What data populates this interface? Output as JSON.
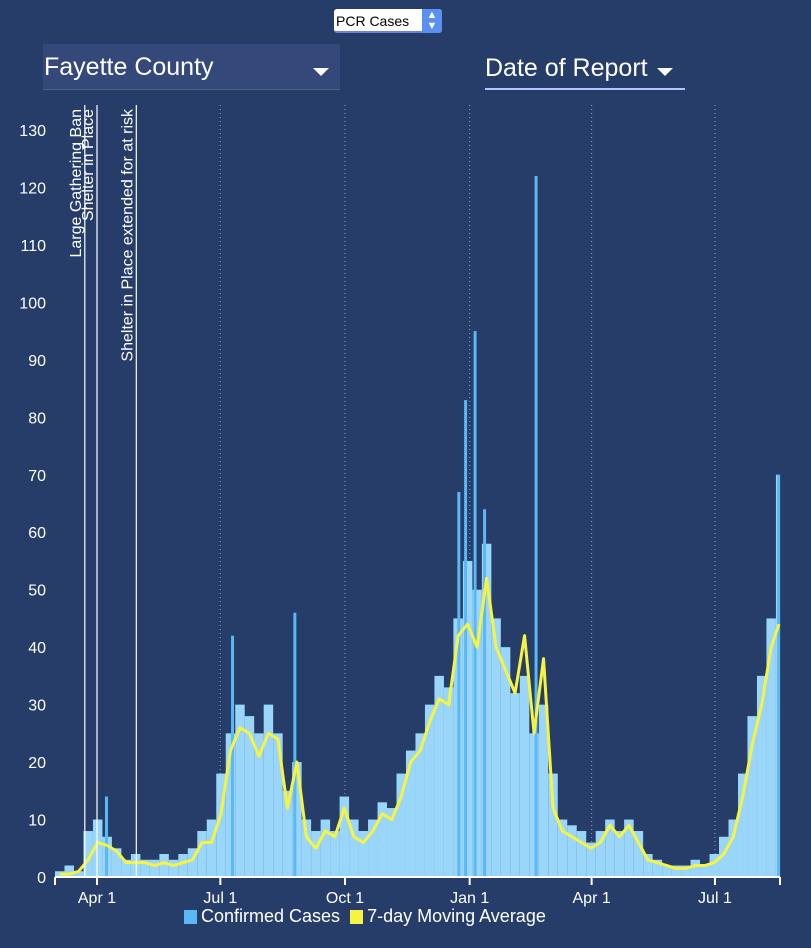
{
  "controls": {
    "metric_select": "PCR Cases",
    "county_select": "Fayette County",
    "date_type_select": "Date of Report"
  },
  "colors": {
    "background": "#263d69",
    "bars": "#9ad6fa",
    "legend_bars": "#5ab8f5",
    "line": "#f7f43f"
  },
  "chart_data": {
    "type": "bar",
    "title": "",
    "xlabel": "",
    "ylabel": "",
    "x_start": "2020-03-01",
    "x_end": "2021-08-18",
    "ylim": [
      0,
      130
    ],
    "y_ticks": [
      0,
      10,
      20,
      30,
      40,
      50,
      60,
      70,
      80,
      90,
      100,
      110,
      120,
      130
    ],
    "x_ticks": [
      {
        "date": "2020-04-01",
        "label": "Apr 1"
      },
      {
        "date": "2020-07-01",
        "label": "Jul 1"
      },
      {
        "date": "2020-10-01",
        "label": "Oct 1"
      },
      {
        "date": "2021-01-01",
        "label": "Jan 1"
      },
      {
        "date": "2021-04-01",
        "label": "Apr 1"
      },
      {
        "date": "2021-07-01",
        "label": "Jul 1"
      }
    ],
    "grid": "vertical-dotted",
    "legend": {
      "placement": "bottom",
      "entries": [
        "Confirmed Cases",
        "7-day Moving Average"
      ]
    },
    "series": [
      {
        "name": "Confirmed Cases",
        "type": "bar",
        "interval_days": 7,
        "values": [
          1,
          2,
          1,
          8,
          10,
          7,
          5,
          3,
          4,
          3,
          3,
          4,
          3,
          4,
          5,
          8,
          10,
          18,
          25,
          30,
          28,
          25,
          30,
          25,
          15,
          20,
          10,
          8,
          10,
          8,
          14,
          10,
          8,
          10,
          13,
          12,
          18,
          22,
          25,
          30,
          35,
          33,
          45,
          55,
          50,
          58,
          45,
          40,
          32,
          35,
          25,
          30,
          18,
          10,
          9,
          8,
          6,
          8,
          10,
          8,
          10,
          8,
          4,
          3,
          2,
          2,
          2,
          3,
          2,
          4,
          7,
          10,
          18,
          28,
          35,
          45,
          70
        ]
      },
      {
        "name": "7-day Moving Average",
        "type": "line",
        "interval_days": 7,
        "values": [
          0.5,
          0.5,
          1,
          3,
          6,
          5.5,
          4.5,
          2.5,
          2.5,
          2.5,
          2,
          2.5,
          2,
          2.5,
          3,
          6,
          6,
          11,
          22,
          26,
          25,
          21,
          25,
          24,
          12,
          20,
          7,
          5,
          8,
          7,
          12,
          7,
          6,
          8,
          11,
          10,
          14,
          20,
          22,
          27,
          31,
          30,
          42,
          44,
          40,
          52,
          40,
          36,
          32,
          42,
          25,
          38,
          12,
          8,
          7,
          6,
          5,
          6,
          9,
          7,
          9,
          6,
          3,
          2.5,
          2,
          1.5,
          1.5,
          2,
          2,
          2.5,
          4,
          7,
          14,
          23,
          30,
          40,
          44
        ]
      }
    ],
    "daily_peaks": [
      {
        "date": "2020-04-08",
        "value": 14
      },
      {
        "date": "2020-07-10",
        "value": 42
      },
      {
        "date": "2020-08-25",
        "value": 46
      },
      {
        "date": "2020-12-24",
        "value": 67
      },
      {
        "date": "2020-12-29",
        "value": 83
      },
      {
        "date": "2021-01-05",
        "value": 95
      },
      {
        "date": "2021-01-12",
        "value": 64
      },
      {
        "date": "2021-02-19",
        "value": 122
      },
      {
        "date": "2021-08-17",
        "value": 70
      }
    ],
    "annotations": [
      {
        "date": "2020-03-23",
        "label": "Large Gathering Ban"
      },
      {
        "date": "2020-04-01",
        "label": "Shelter in Place"
      },
      {
        "date": "2020-04-30",
        "label": "Shelter in Place extended for at risk"
      }
    ]
  }
}
